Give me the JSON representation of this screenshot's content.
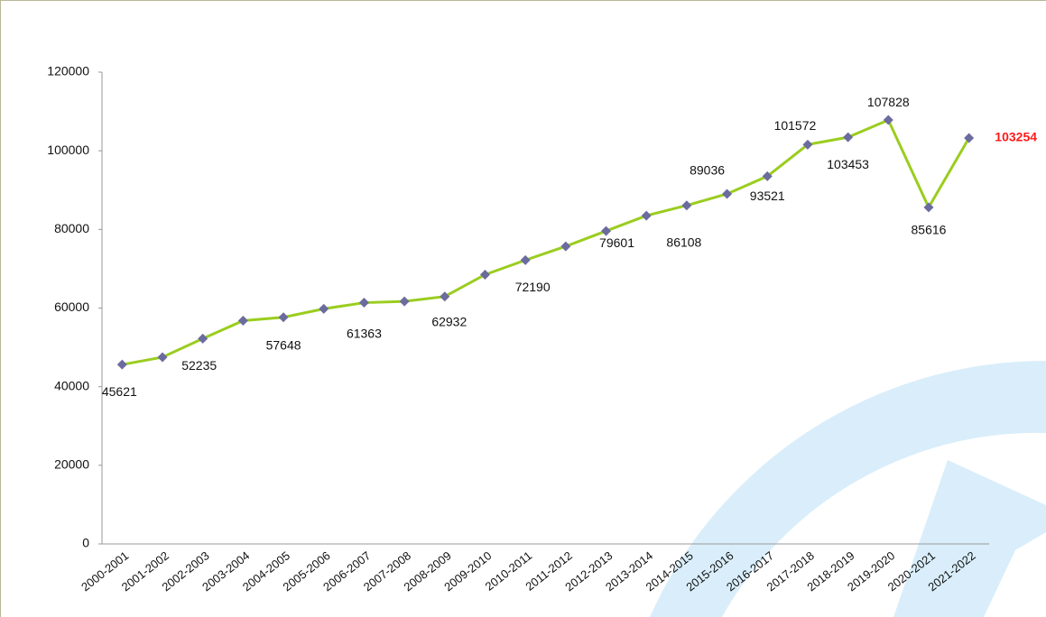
{
  "chart_data": {
    "type": "line",
    "categories": [
      "2000-2001",
      "2001-2002",
      "2002-2003",
      "2003-2004",
      "2004-2005",
      "2005-2006",
      "2006-2007",
      "2007-2008",
      "2008-2009",
      "2009-2010",
      "2010-2011",
      "2011-2012",
      "2012-2013",
      "2013-2014",
      "2014-2015",
      "2015-2016",
      "2016-2017",
      "2017-2018",
      "2018-2019",
      "2019-2020",
      "2020-2021",
      "2021-2022"
    ],
    "series": [
      {
        "name": null,
        "color": "#9acd1f",
        "marker_color": "#6b6b9e",
        "values": [
          45621,
          47500,
          52235,
          56800,
          57648,
          59800,
          61363,
          61700,
          62932,
          68500,
          72190,
          75700,
          79601,
          83500,
          86108,
          89036,
          93521,
          101572,
          103453,
          107828,
          85616,
          103254
        ],
        "value_labels": [
          "45621",
          null,
          "52235",
          null,
          "57648",
          null,
          "61363",
          null,
          "62932",
          null,
          "72190",
          null,
          "79601",
          null,
          "86108",
          "89036",
          "93521",
          "101572",
          "103453",
          "107828",
          "85616",
          "103254"
        ]
      }
    ],
    "ylim": [
      0,
      120000
    ],
    "yticks": [
      0,
      20000,
      40000,
      60000,
      80000,
      100000,
      120000
    ],
    "grid": false
  }
}
